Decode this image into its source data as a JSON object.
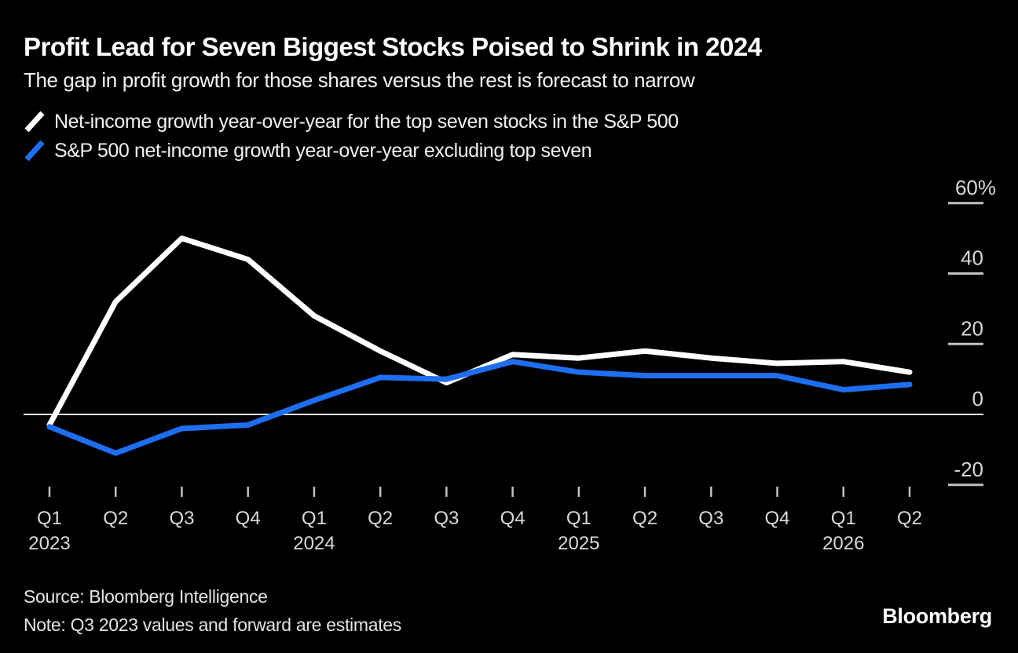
{
  "footer": {
    "source": "Source: Bloomberg Intelligence",
    "note": "Note: Q3 2023 values and forward are estimates",
    "logo": "Bloomberg"
  },
  "chart_data": {
    "type": "line",
    "title": "Profit Lead for Seven Biggest Stocks Poised to Shrink in 2024",
    "subtitle": "The gap in profit growth for those shares versus the rest is forecast to narrow",
    "unit": "%",
    "categories": [
      "Q1",
      "Q2",
      "Q3",
      "Q4",
      "Q1",
      "Q2",
      "Q3",
      "Q4",
      "Q1",
      "Q2",
      "Q3",
      "Q4",
      "Q1",
      "Q2"
    ],
    "year_labels": [
      {
        "index": 0,
        "label": "2023"
      },
      {
        "index": 4,
        "label": "2024"
      },
      {
        "index": 8,
        "label": "2025"
      },
      {
        "index": 12,
        "label": "2026"
      }
    ],
    "series": [
      {
        "name": "Net-income growth year-over-year for the top seven stocks in the S&P 500",
        "color": "#ffffff",
        "values": [
          -3,
          32,
          50,
          44,
          28,
          18,
          9,
          17,
          16,
          18,
          16,
          14.5,
          15,
          12
        ]
      },
      {
        "name": "S&P 500 net-income growth year-over-year excluding top seven",
        "color": "#1e6ef0",
        "values": [
          -3.5,
          -11,
          -4,
          -3,
          4,
          10.5,
          10,
          15,
          12,
          11,
          11,
          11,
          7,
          8.5
        ]
      }
    ],
    "yticks": [
      {
        "label": "60%",
        "value": 60
      },
      {
        "label": "40",
        "value": 40
      },
      {
        "label": "20",
        "value": 20
      },
      {
        "label": "0",
        "value": 0
      },
      {
        "label": "-20",
        "value": -20
      }
    ],
    "ylim": [
      -25,
      62
    ],
    "xlabel": "",
    "ylabel": "",
    "grid": "zero baseline only, short right-side tick dashes",
    "legend_position": "top-left",
    "axis_colors": {
      "label_text": "#d8d8d8",
      "tick": "#c2c2c2",
      "zero_line": "#e0e0e0"
    },
    "background": "#000000"
  }
}
